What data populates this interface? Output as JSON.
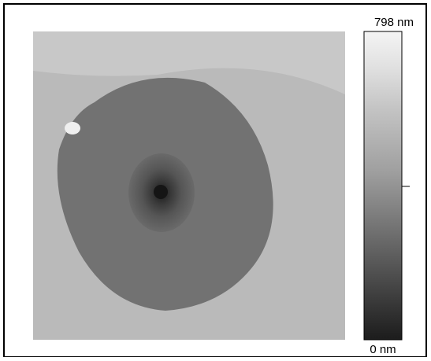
{
  "colorbar": {
    "top_label": "798 nm",
    "bottom_label": "0 nm"
  }
}
